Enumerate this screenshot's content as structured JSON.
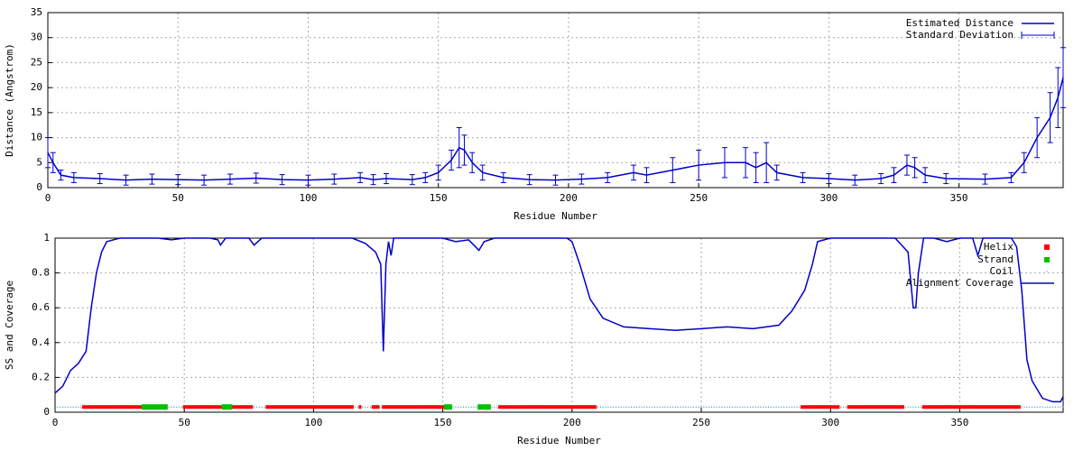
{
  "chart_data": [
    {
      "type": "errorbar",
      "xlabel": "Residue Number",
      "ylabel": "Distance (Angstrom)",
      "x": [
        0,
        2,
        5,
        10,
        20,
        30,
        40,
        50,
        60,
        70,
        80,
        90,
        100,
        110,
        120,
        125,
        130,
        140,
        145,
        150,
        155,
        158,
        160,
        163,
        167,
        175,
        185,
        195,
        205,
        215,
        225,
        230,
        240,
        250,
        260,
        268,
        272,
        276,
        280,
        290,
        300,
        310,
        320,
        325,
        330,
        333,
        337,
        345,
        360,
        370,
        375,
        380,
        385,
        388,
        390
      ],
      "series": [
        {
          "name": "Estimated Distance",
          "color": "#0000cc",
          "values": [
            7,
            5,
            2.5,
            2,
            1.8,
            1.5,
            1.7,
            1.6,
            1.5,
            1.7,
            1.9,
            1.6,
            1.5,
            1.7,
            2,
            1.6,
            1.8,
            1.6,
            2,
            3,
            5.5,
            8,
            7.5,
            5,
            3,
            2,
            1.6,
            1.5,
            1.7,
            2,
            3,
            2.5,
            3.5,
            4.5,
            5,
            5,
            4,
            5,
            3,
            2,
            1.8,
            1.5,
            1.8,
            2.5,
            4.5,
            4,
            2.5,
            1.8,
            1.7,
            2,
            5,
            10,
            14,
            18,
            22
          ]
        },
        {
          "name": "Standard Deviation",
          "color": "#0000cc",
          "values": [
            3,
            2,
            1,
            1,
            1,
            1,
            1,
            1,
            1,
            1,
            1,
            1,
            1,
            1,
            1,
            1,
            1,
            1,
            1,
            1.5,
            2,
            4,
            3,
            2,
            1.5,
            1,
            1,
            1,
            1,
            1,
            1.5,
            1.5,
            2.5,
            3,
            3,
            3,
            3,
            4,
            1.5,
            1,
            1,
            1,
            1,
            1.5,
            2,
            2,
            1.5,
            1,
            1,
            1,
            2,
            4,
            5,
            6,
            6
          ]
        }
      ],
      "xlim": [
        0,
        390
      ],
      "ylim": [
        0,
        35
      ],
      "xticks": [
        0,
        50,
        100,
        150,
        200,
        250,
        300,
        350
      ],
      "yticks": [
        0,
        5,
        10,
        15,
        20,
        25,
        30,
        35
      ],
      "grid": true,
      "legend": "top-right"
    },
    {
      "type": "line",
      "xlabel": "Residue Number",
      "ylabel": "SS and Coverage",
      "series": [
        {
          "name": "Helix",
          "color": "#ff0000",
          "start": [
            11,
            50,
            69,
            82,
            118,
            123,
            127,
            172,
            289,
            307,
            318,
            336
          ],
          "end": [
            33,
            64,
            76,
            115,
            118,
            125,
            150,
            209,
            303,
            317,
            328,
            373
          ],
          "values": [
            0.03,
            0.03,
            0.03,
            0.03,
            0.03,
            0.03,
            0.03,
            0.03,
            0.03,
            0.03,
            0.03,
            0.03
          ]
        },
        {
          "name": "Strand",
          "color": "#00c000",
          "start": [
            34,
            65,
            151,
            164
          ],
          "end": [
            43,
            68,
            153,
            168
          ],
          "values": [
            0.03,
            0.03,
            0.03,
            0.03
          ]
        },
        {
          "name": "Coil",
          "color": "#0090c0",
          "start": [
            1,
            44,
            77,
            116,
            119,
            126,
            154,
            169,
            210,
            304,
            329,
            374
          ],
          "end": [
            10,
            49,
            81,
            117,
            122,
            126,
            163,
            171,
            288,
            306,
            335,
            390
          ],
          "values": [
            0.03,
            0.03,
            0.03,
            0.03,
            0.03,
            0.03,
            0.03,
            0.03,
            0.03,
            0.03,
            0.03,
            0.03
          ]
        },
        {
          "name": "Alignment Coverage",
          "color": "#0000cc",
          "x": [
            0,
            3,
            6,
            9,
            12,
            14,
            16,
            18,
            20,
            25,
            40,
            45,
            50,
            60,
            63,
            64,
            66,
            75,
            77,
            80,
            115,
            120,
            124,
            126,
            127,
            128,
            129,
            130,
            131,
            150,
            155,
            160,
            164,
            166,
            170,
            198,
            200,
            203,
            207,
            212,
            220,
            230,
            240,
            250,
            260,
            270,
            280,
            285,
            290,
            293,
            295,
            300,
            325,
            330,
            332,
            333,
            334,
            336,
            340,
            345,
            350,
            355,
            357,
            359,
            370,
            372,
            374,
            376,
            378,
            382,
            386,
            389,
            390
          ],
          "values": [
            0.11,
            0.15,
            0.24,
            0.28,
            0.35,
            0.6,
            0.8,
            0.92,
            0.98,
            1,
            1,
            0.99,
            1,
            1,
            0.99,
            0.96,
            1,
            1,
            0.96,
            1,
            1,
            0.97,
            0.92,
            0.85,
            0.35,
            0.85,
            0.98,
            0.9,
            1,
            1,
            0.98,
            0.99,
            0.93,
            0.98,
            1,
            1,
            0.98,
            0.85,
            0.65,
            0.54,
            0.49,
            0.48,
            0.47,
            0.48,
            0.49,
            0.48,
            0.5,
            0.58,
            0.7,
            0.85,
            0.98,
            1,
            1,
            0.92,
            0.6,
            0.6,
            0.8,
            1,
            1,
            0.98,
            1,
            1,
            0.9,
            1,
            1,
            0.95,
            0.7,
            0.3,
            0.18,
            0.08,
            0.06,
            0.06,
            0.09
          ]
        }
      ],
      "xlim": [
        0,
        390
      ],
      "ylim": [
        0,
        1
      ],
      "xticks": [
        0,
        50,
        100,
        150,
        200,
        250,
        300,
        350
      ],
      "yticks": [
        0,
        0.2,
        0.4,
        0.6,
        0.8,
        1
      ],
      "grid": true,
      "legend": "top-right"
    }
  ]
}
